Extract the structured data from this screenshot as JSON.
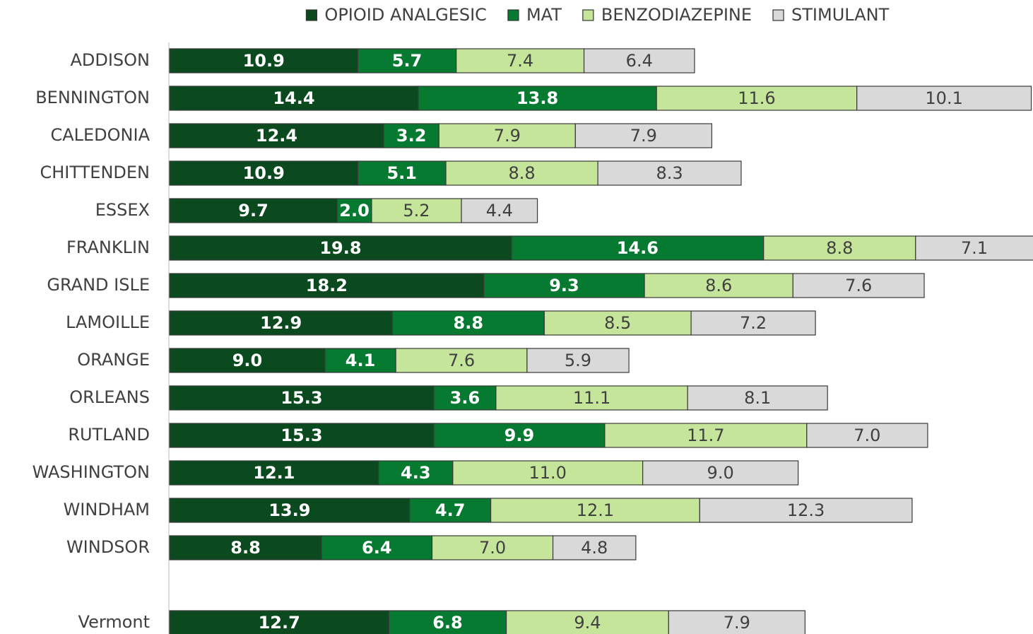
{
  "chart_data": {
    "type": "stacked_barh",
    "categories": [
      "ADDISON",
      "BENNINGTON",
      "CALEDONIA",
      "CHITTENDEN",
      "ESSEX",
      "FRANKLIN",
      "GRAND ISLE",
      "LAMOILLE",
      "ORANGE",
      "ORLEANS",
      "RUTLAND",
      "WASHINGTON",
      "WINDHAM",
      "WINDSOR",
      null,
      "Vermont"
    ],
    "series": [
      {
        "name": "OPIOID ANALGESIC",
        "color": "#0b4a1f",
        "values": [
          10.9,
          14.4,
          12.4,
          10.9,
          9.7,
          19.8,
          18.2,
          12.9,
          9.0,
          15.3,
          15.3,
          12.1,
          13.9,
          8.8,
          null,
          12.7
        ],
        "value_labels": [
          "10.9",
          "14.4",
          "12.4",
          "10.9",
          "9.7",
          "19.8",
          "18.2",
          "12.9",
          "9.0",
          "15.3",
          "15.3",
          "12.1",
          "13.9",
          "8.8",
          null,
          "12.7"
        ]
      },
      {
        "name": "MAT",
        "color": "#077a32",
        "values": [
          5.7,
          13.8,
          3.2,
          5.1,
          2.0,
          14.6,
          9.3,
          8.8,
          4.1,
          3.6,
          9.9,
          4.3,
          4.7,
          6.4,
          null,
          6.8
        ],
        "value_labels": [
          "5.7",
          "13.8",
          "3.2",
          "5.1",
          "2.0",
          "14.6",
          "9.3",
          "8.8",
          "4.1",
          "3.6",
          "9.9",
          "4.3",
          "4.7",
          "6.4",
          null,
          "6.8"
        ]
      },
      {
        "name": "BENZODIAZEPINE",
        "color": "#c5e59b",
        "values": [
          7.4,
          11.6,
          7.9,
          8.8,
          5.2,
          8.8,
          8.6,
          8.5,
          7.6,
          11.1,
          11.7,
          11.0,
          12.1,
          7.0,
          null,
          9.4
        ],
        "value_labels": [
          "7.4",
          "11.6",
          "7.9",
          "8.8",
          "5.2",
          "8.8",
          "8.6",
          "8.5",
          "7.6",
          "11.1",
          "11.7",
          "11.0",
          "12.1",
          "7.0",
          null,
          "9.4"
        ]
      },
      {
        "name": "STIMULANT",
        "color": "#d9d9d9",
        "values": [
          6.4,
          10.1,
          7.9,
          8.3,
          4.4,
          7.1,
          7.6,
          7.2,
          5.9,
          8.1,
          7.0,
          9.0,
          12.3,
          4.8,
          null,
          7.9
        ],
        "value_labels": [
          "6.4",
          "10.1",
          "7.9",
          "8.3",
          "4.4",
          "7.1",
          "7.6",
          "7.2",
          "5.9",
          "8.1",
          "7.0",
          "9.0",
          "12.3",
          "4.8",
          null,
          "7.9"
        ]
      }
    ],
    "xlim": [
      0,
      50
    ],
    "legend": "top"
  }
}
